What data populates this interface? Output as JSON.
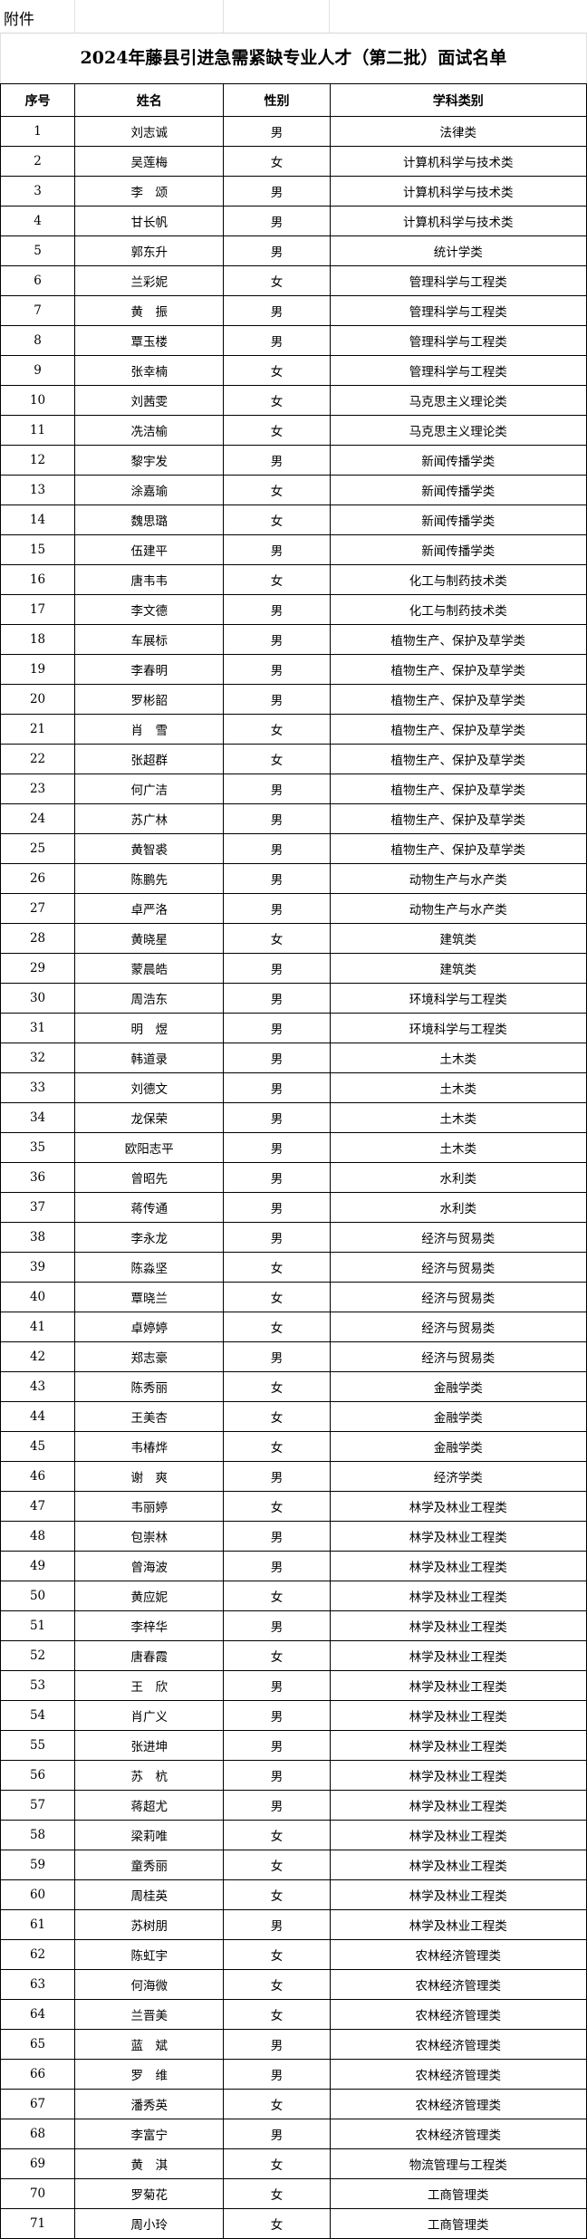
{
  "attachment_label": "附件",
  "title": "2024年藤县引进急需紧缺专业人才（第二批）面试名单",
  "columns": [
    "序号",
    "姓名",
    "性别",
    "学科类别"
  ],
  "rows": [
    [
      "1",
      "刘志诚",
      "男",
      "法律类"
    ],
    [
      "2",
      "吴莲梅",
      "女",
      "计算机科学与技术类"
    ],
    [
      "3",
      "李　颂",
      "男",
      "计算机科学与技术类"
    ],
    [
      "4",
      "甘长帆",
      "男",
      "计算机科学与技术类"
    ],
    [
      "5",
      "郭东升",
      "男",
      "统计学类"
    ],
    [
      "6",
      "兰彩妮",
      "女",
      "管理科学与工程类"
    ],
    [
      "7",
      "黄　振",
      "男",
      "管理科学与工程类"
    ],
    [
      "8",
      "覃玉楼",
      "男",
      "管理科学与工程类"
    ],
    [
      "9",
      "张幸楠",
      "女",
      "管理科学与工程类"
    ],
    [
      "10",
      "刘茜雯",
      "女",
      "马克思主义理论类"
    ],
    [
      "11",
      "冼洁榆",
      "女",
      "马克思主义理论类"
    ],
    [
      "12",
      "黎宇发",
      "男",
      "新闻传播学类"
    ],
    [
      "13",
      "涂嘉瑜",
      "女",
      "新闻传播学类"
    ],
    [
      "14",
      "魏思璐",
      "女",
      "新闻传播学类"
    ],
    [
      "15",
      "伍建平",
      "男",
      "新闻传播学类"
    ],
    [
      "16",
      "唐韦韦",
      "女",
      "化工与制药技术类"
    ],
    [
      "17",
      "李文德",
      "男",
      "化工与制药技术类"
    ],
    [
      "18",
      "车展标",
      "男",
      "植物生产、保护及草学类"
    ],
    [
      "19",
      "李春明",
      "男",
      "植物生产、保护及草学类"
    ],
    [
      "20",
      "罗彬韶",
      "男",
      "植物生产、保护及草学类"
    ],
    [
      "21",
      "肖　雪",
      "女",
      "植物生产、保护及草学类"
    ],
    [
      "22",
      "张超群",
      "女",
      "植物生产、保护及草学类"
    ],
    [
      "23",
      "何广洁",
      "男",
      "植物生产、保护及草学类"
    ],
    [
      "24",
      "苏广林",
      "男",
      "植物生产、保护及草学类"
    ],
    [
      "25",
      "黄智裘",
      "男",
      "植物生产、保护及草学类"
    ],
    [
      "26",
      "陈鹏先",
      "男",
      "动物生产与水产类"
    ],
    [
      "27",
      "卓严洛",
      "男",
      "动物生产与水产类"
    ],
    [
      "28",
      "黄晓星",
      "女",
      "建筑类"
    ],
    [
      "29",
      "蒙晨皓",
      "男",
      "建筑类"
    ],
    [
      "30",
      "周浩东",
      "男",
      "环境科学与工程类"
    ],
    [
      "31",
      "明　煜",
      "男",
      "环境科学与工程类"
    ],
    [
      "32",
      "韩道录",
      "男",
      "土木类"
    ],
    [
      "33",
      "刘德文",
      "男",
      "土木类"
    ],
    [
      "34",
      "龙保荣",
      "男",
      "土木类"
    ],
    [
      "35",
      "欧阳志平",
      "男",
      "土木类"
    ],
    [
      "36",
      "曾昭先",
      "男",
      "水利类"
    ],
    [
      "37",
      "蒋传通",
      "男",
      "水利类"
    ],
    [
      "38",
      "李永龙",
      "男",
      "经济与贸易类"
    ],
    [
      "39",
      "陈淼坚",
      "女",
      "经济与贸易类"
    ],
    [
      "40",
      "覃晓兰",
      "女",
      "经济与贸易类"
    ],
    [
      "41",
      "卓婷婷",
      "女",
      "经济与贸易类"
    ],
    [
      "42",
      "郑志豪",
      "男",
      "经济与贸易类"
    ],
    [
      "43",
      "陈秀丽",
      "女",
      "金融学类"
    ],
    [
      "44",
      "王美杏",
      "女",
      "金融学类"
    ],
    [
      "45",
      "韦椿烨",
      "女",
      "金融学类"
    ],
    [
      "46",
      "谢　爽",
      "男",
      "经济学类"
    ],
    [
      "47",
      "韦丽婷",
      "女",
      "林学及林业工程类"
    ],
    [
      "48",
      "包崇林",
      "男",
      "林学及林业工程类"
    ],
    [
      "49",
      "曾海波",
      "男",
      "林学及林业工程类"
    ],
    [
      "50",
      "黄应妮",
      "女",
      "林学及林业工程类"
    ],
    [
      "51",
      "李梓华",
      "男",
      "林学及林业工程类"
    ],
    [
      "52",
      "唐春霞",
      "女",
      "林学及林业工程类"
    ],
    [
      "53",
      "王　欣",
      "男",
      "林学及林业工程类"
    ],
    [
      "54",
      "肖广义",
      "男",
      "林学及林业工程类"
    ],
    [
      "55",
      "张进坤",
      "男",
      "林学及林业工程类"
    ],
    [
      "56",
      "苏　杭",
      "男",
      "林学及林业工程类"
    ],
    [
      "57",
      "蒋超尤",
      "男",
      "林学及林业工程类"
    ],
    [
      "58",
      "梁莉唯",
      "女",
      "林学及林业工程类"
    ],
    [
      "59",
      "童秀丽",
      "女",
      "林学及林业工程类"
    ],
    [
      "60",
      "周桂英",
      "女",
      "林学及林业工程类"
    ],
    [
      "61",
      "苏树朋",
      "男",
      "林学及林业工程类"
    ],
    [
      "62",
      "陈虹宇",
      "女",
      "农林经济管理类"
    ],
    [
      "63",
      "何海微",
      "女",
      "农林经济管理类"
    ],
    [
      "64",
      "兰晋美",
      "女",
      "农林经济管理类"
    ],
    [
      "65",
      "蓝　斌",
      "男",
      "农林经济管理类"
    ],
    [
      "66",
      "罗　维",
      "男",
      "农林经济管理类"
    ],
    [
      "67",
      "潘秀英",
      "女",
      "农林经济管理类"
    ],
    [
      "68",
      "李富宁",
      "男",
      "农林经济管理类"
    ],
    [
      "69",
      "黄　淇",
      "女",
      "物流管理与工程类"
    ],
    [
      "70",
      "罗菊花",
      "女",
      "工商管理类"
    ],
    [
      "71",
      "周小玲",
      "女",
      "工商管理类"
    ]
  ]
}
